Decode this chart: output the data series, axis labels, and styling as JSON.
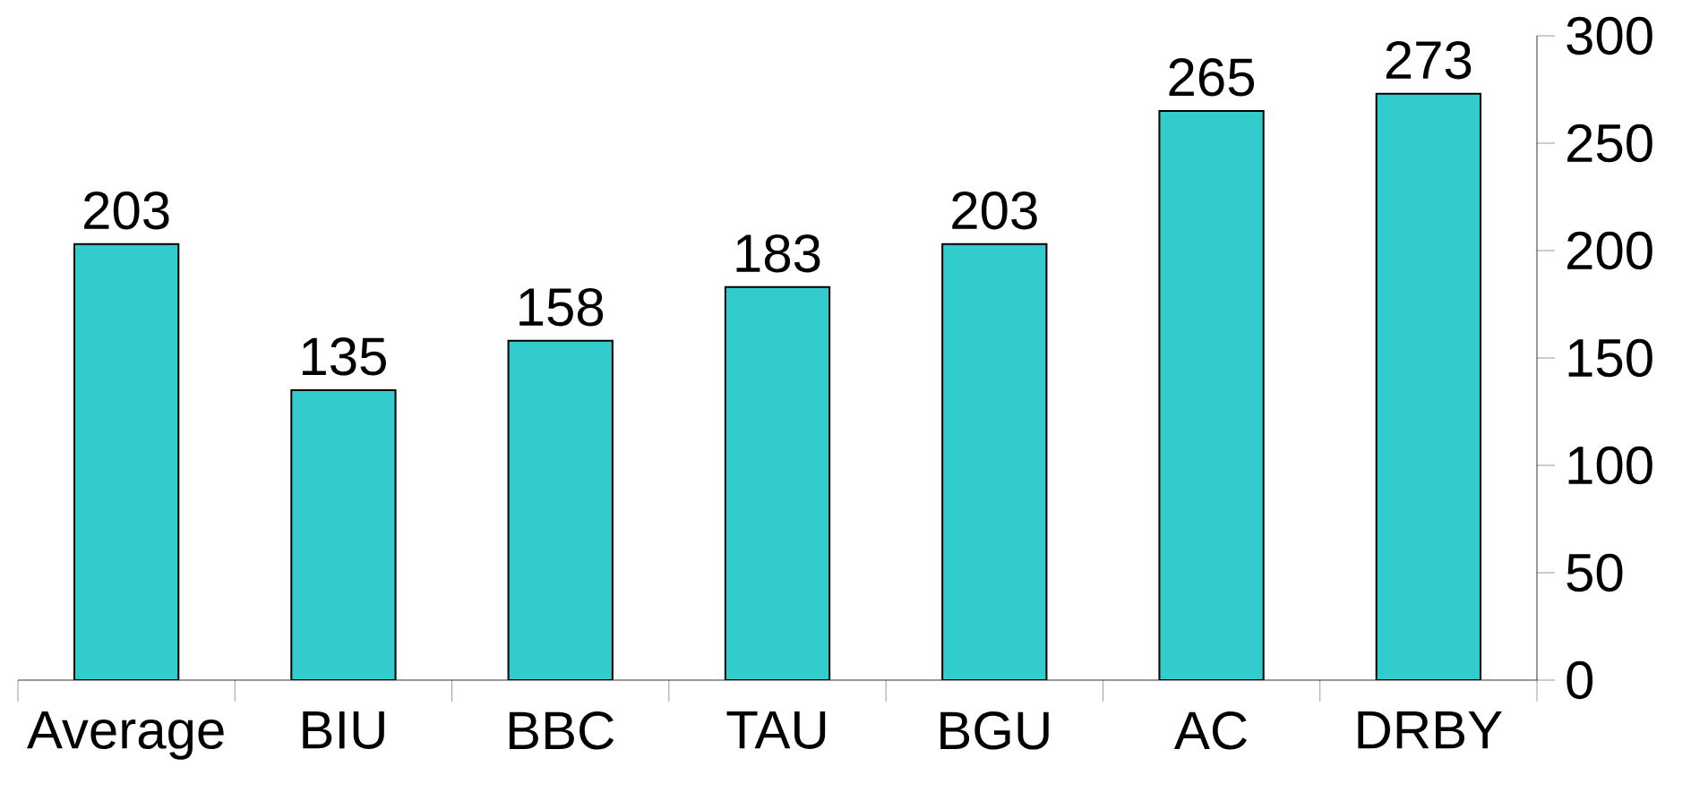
{
  "chart_data": {
    "type": "bar",
    "categories": [
      "Average",
      "BIU",
      "BBC",
      "TAU",
      "BGU",
      "AC",
      "DRBY"
    ],
    "values": [
      203,
      135,
      158,
      183,
      203,
      265,
      273
    ],
    "color": "#33cccc",
    "ylim": [
      0,
      300
    ],
    "yticks": [
      0,
      50,
      100,
      150,
      200,
      250,
      300
    ],
    "data_labels": true
  }
}
